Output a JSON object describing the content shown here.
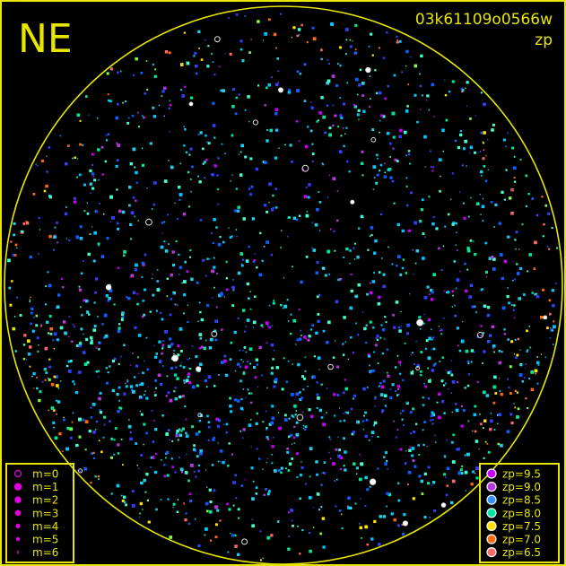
{
  "direction_label": "NE",
  "image_id": "03k61109o0566w",
  "mode_label": "zp",
  "colors": {
    "frame": "#e6e600",
    "background": "#000000",
    "magnitude_marker": "#e000e0"
  },
  "magnitude_legend": [
    {
      "label": "m=0",
      "style": "ring"
    },
    {
      "label": "m=1",
      "style": "dot"
    },
    {
      "label": "m=2",
      "style": "dot"
    },
    {
      "label": "m=3",
      "style": "dot"
    },
    {
      "label": "m=4",
      "style": "dot"
    },
    {
      "label": "m=5",
      "style": "dot"
    },
    {
      "label": "m=6",
      "style": "dot"
    }
  ],
  "zp_legend": [
    {
      "label": "zp=9.5",
      "color": "#c800f8"
    },
    {
      "label": "zp=9.0",
      "color": "#b838e0"
    },
    {
      "label": "zp=8.5",
      "color": "#3090ff"
    },
    {
      "label": "zp=8.0",
      "color": "#00e8a0"
    },
    {
      "label": "zp=7.5",
      "color": "#ffe000"
    },
    {
      "label": "zp=7.0",
      "color": "#ff6a10"
    },
    {
      "label": "zp=6.5",
      "color": "#ff6868"
    }
  ]
}
